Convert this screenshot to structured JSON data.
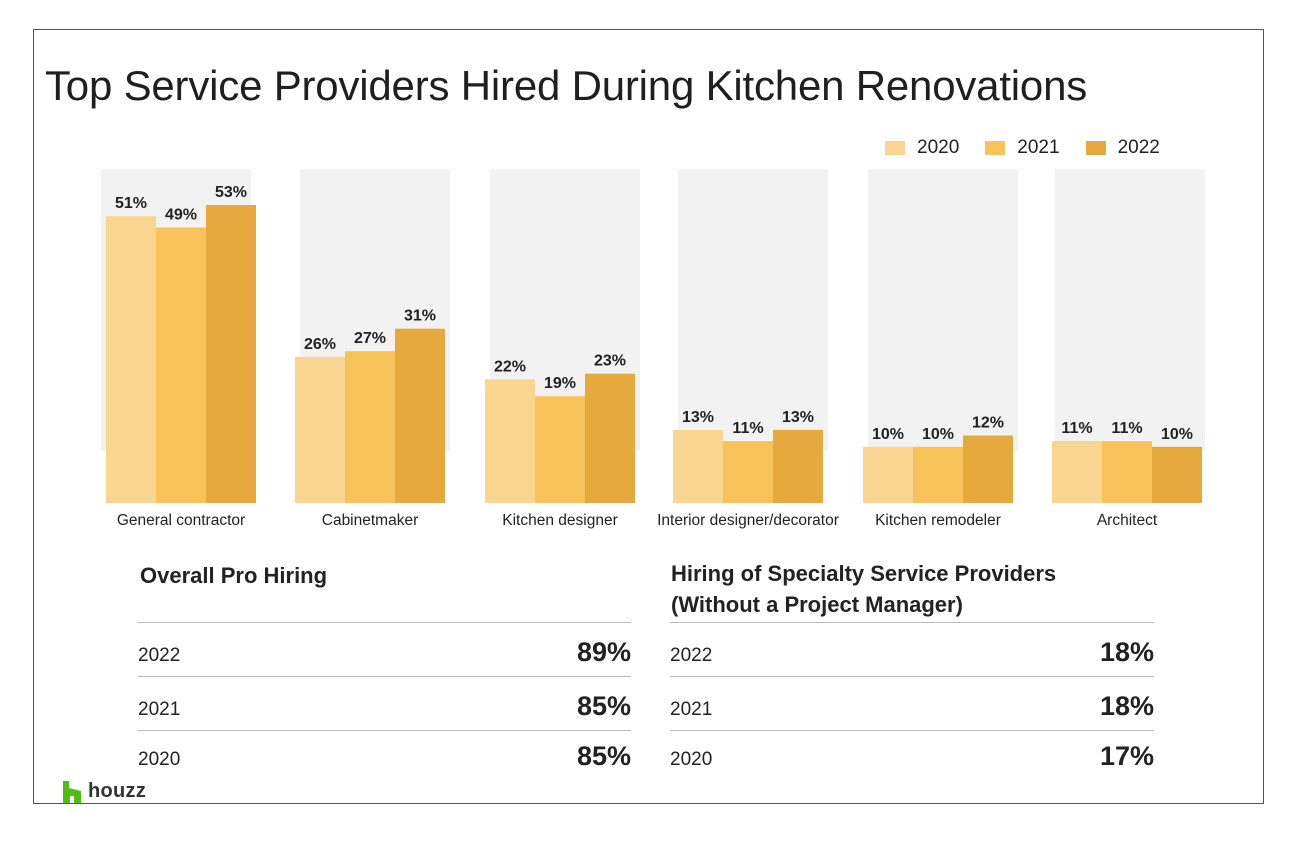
{
  "title": "Top Service Providers Hired During Kitchen Renovations",
  "colors": {
    "2020": "#fad591",
    "2021": "#f7c25a",
    "2022": "#e5a93e",
    "track": "#f2f2f2"
  },
  "chart_data": {
    "type": "bar",
    "title": "Top Service Providers Hired During Kitchen Renovations",
    "categories": [
      "General contractor",
      "Cabinetmaker",
      "Kitchen designer",
      "Interior designer/decorator",
      "Kitchen remodeler",
      "Architect"
    ],
    "series": [
      {
        "name": "2020",
        "values": [
          51,
          26,
          22,
          13,
          10,
          11
        ]
      },
      {
        "name": "2021",
        "values": [
          49,
          27,
          19,
          11,
          10,
          11
        ]
      },
      {
        "name": "2022",
        "values": [
          53,
          31,
          23,
          13,
          12,
          10
        ]
      }
    ],
    "ylim": [
      0,
      53
    ],
    "value_suffix": "%",
    "legend_position": "top-right",
    "grid": false
  },
  "overall": {
    "title": "Overall Pro Hiring",
    "rows": [
      {
        "year": "2022",
        "value": "89%"
      },
      {
        "year": "2021",
        "value": "85%"
      },
      {
        "year": "2020",
        "value": "85%"
      }
    ]
  },
  "specialty": {
    "title_line1": "Hiring of Specialty Service Providers",
    "title_line2": "(Without a Project Manager)",
    "rows": [
      {
        "year": "2022",
        "value": "18%"
      },
      {
        "year": "2021",
        "value": "18%"
      },
      {
        "year": "2020",
        "value": "17%"
      }
    ]
  },
  "logo": {
    "text": "houzz",
    "color": "#4dbc15"
  }
}
